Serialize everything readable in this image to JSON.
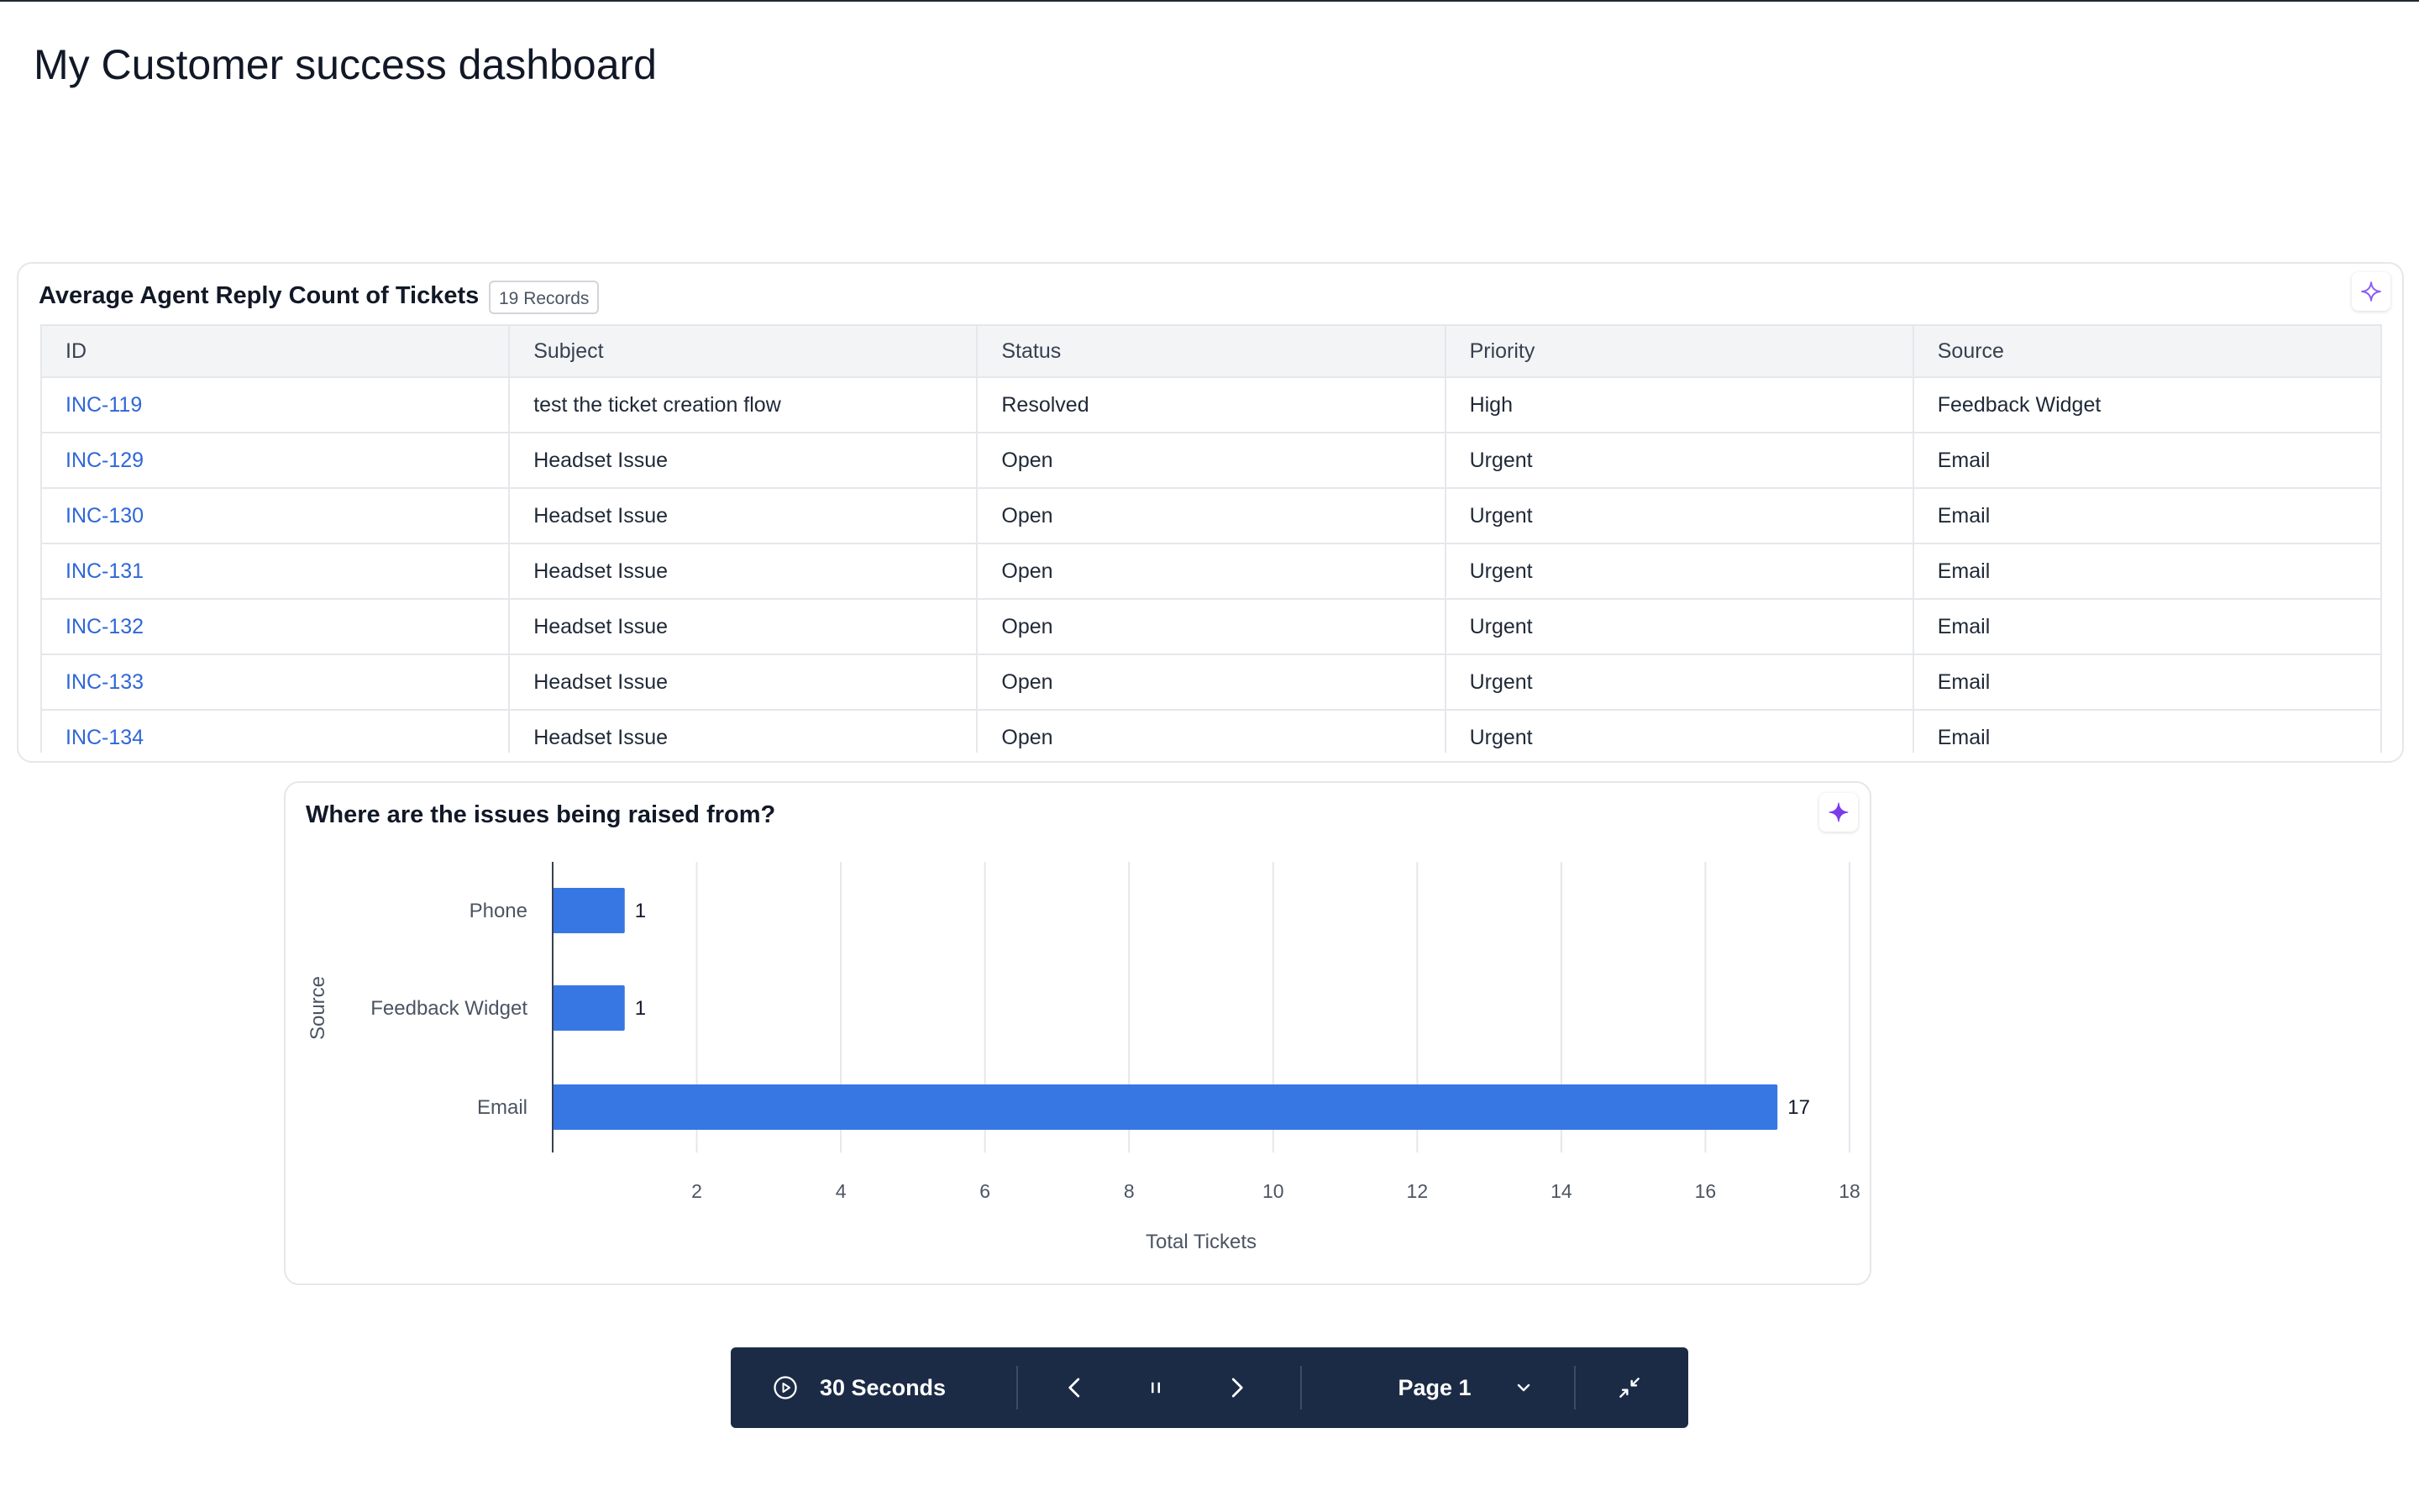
{
  "page": {
    "title": "My Customer success dashboard"
  },
  "table_widget": {
    "title": "Average Agent Reply Count of Tickets",
    "records_badge": "19 Records",
    "ai_icon": "sparkle-icon",
    "columns": [
      "ID",
      "Subject",
      "Status",
      "Priority",
      "Source"
    ],
    "rows": [
      [
        "INC-119",
        "test the ticket creation flow",
        "Resolved",
        "High",
        "Feedback Widget"
      ],
      [
        "INC-129",
        "Headset Issue",
        "Open",
        "Urgent",
        "Email"
      ],
      [
        "INC-130",
        "Headset Issue",
        "Open",
        "Urgent",
        "Email"
      ],
      [
        "INC-131",
        "Headset Issue",
        "Open",
        "Urgent",
        "Email"
      ],
      [
        "INC-132",
        "Headset Issue",
        "Open",
        "Urgent",
        "Email"
      ],
      [
        "INC-133",
        "Headset Issue",
        "Open",
        "Urgent",
        "Email"
      ],
      [
        "INC-134",
        "Headset Issue",
        "Open",
        "Urgent",
        "Email"
      ]
    ],
    "link_color": "#2f67d8"
  },
  "chart_widget": {
    "title": "Where are the issues being raised from?",
    "ai_icon": "sparkle-icon"
  },
  "chart_data": {
    "type": "bar",
    "orientation": "horizontal",
    "title": "Where are the issues being raised from?",
    "categories": [
      "Phone",
      "Feedback Widget",
      "Email"
    ],
    "values": [
      1,
      1,
      17
    ],
    "xlabel": "Total Tickets",
    "ylabel": "Source",
    "xlim": [
      0,
      18
    ],
    "xticks": [
      2,
      4,
      6,
      8,
      10,
      12,
      14,
      16,
      18
    ],
    "grid": true,
    "bar_color": "#3777e3"
  },
  "controls": {
    "timer_icon": "play-circle-icon",
    "timer_label": "30 Seconds",
    "prev_icon": "chevron-left-icon",
    "pause_icon": "pause-icon",
    "next_icon": "chevron-right-icon",
    "page_label": "Page 1",
    "page_dropdown_icon": "chevron-down-icon",
    "collapse_icon": "minimize-icon"
  }
}
